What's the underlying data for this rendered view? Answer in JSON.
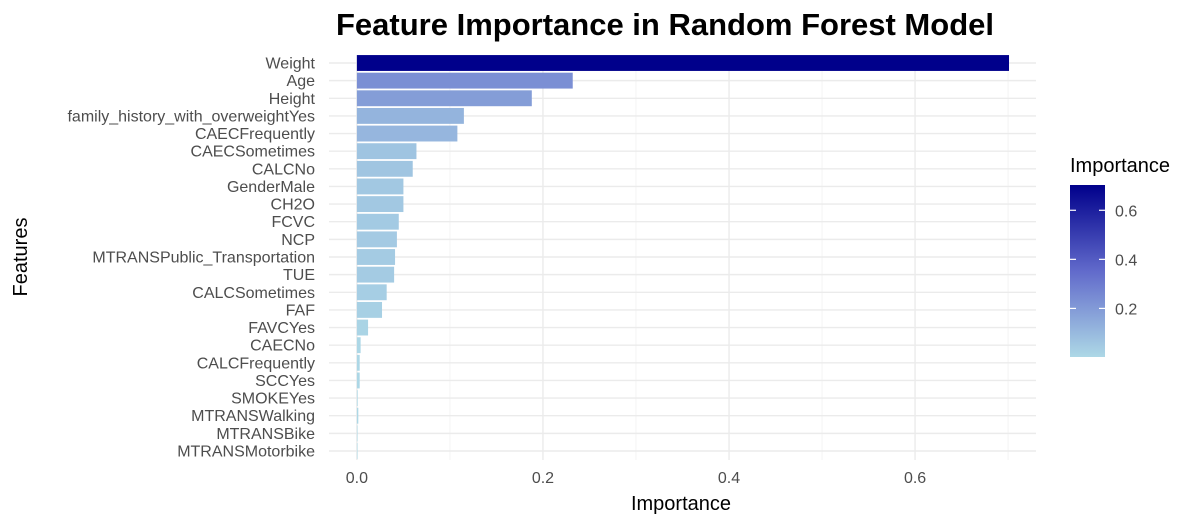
{
  "chart_data": {
    "type": "bar",
    "orientation": "horizontal",
    "title": "Feature Importance in Random Forest Model",
    "xlabel": "Importance",
    "ylabel": "Features",
    "xlim": [
      -0.03,
      0.73
    ],
    "x_ticks": [
      0.0,
      0.2,
      0.4,
      0.6
    ],
    "x_tick_labels": [
      "0.0",
      "0.2",
      "0.4",
      "0.6"
    ],
    "grid": true,
    "legend": {
      "title": "Importance",
      "placement": "right",
      "type": "colorbar",
      "range": [
        0.0,
        0.7
      ],
      "ticks": [
        0.2,
        0.4,
        0.6
      ],
      "tick_labels": [
        "0.2",
        "0.4",
        "0.6"
      ],
      "color_low": "#add8e6",
      "color_high": "#00008b"
    },
    "categories": [
      "Weight",
      "Age",
      "Height",
      "family_history_with_overweightYes",
      "CAECFrequently",
      "CAECSometimes",
      "CALCNo",
      "GenderMale",
      "CH2O",
      "FCVC",
      "NCP",
      "MTRANSPublic_Transportation",
      "TUE",
      "CALCSometimes",
      "FAF",
      "FAVCYes",
      "CAECNo",
      "CALCFrequently",
      "SCCYes",
      "SMOKEYes",
      "MTRANSWalking",
      "MTRANSBike",
      "MTRANSMotorbike"
    ],
    "values": [
      0.701,
      0.232,
      0.188,
      0.115,
      0.108,
      0.064,
      0.06,
      0.05,
      0.05,
      0.045,
      0.043,
      0.041,
      0.04,
      0.032,
      0.027,
      0.012,
      0.004,
      0.003,
      0.003,
      0.0008,
      0.0015,
      0.0004,
      0.0002
    ]
  }
}
